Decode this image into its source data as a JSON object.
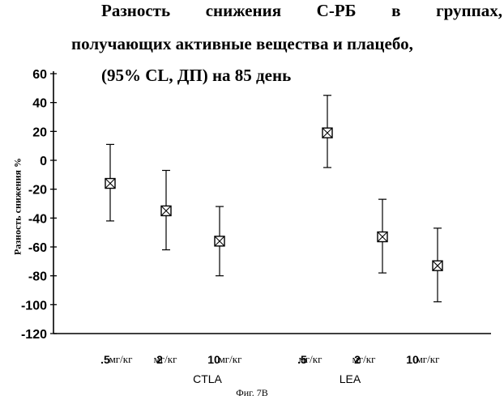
{
  "chart_data": {
    "type": "error-bar",
    "title_lines": [
      "Разность снижения С-РБ в группах,",
      "получающих активные вещества и плацебо,",
      "(95% CL, ДП) на 85 день"
    ],
    "ylabel": "Разность снижения %",
    "ylim": [
      -120,
      60
    ],
    "yticks": [
      "60",
      "40",
      "20",
      "0",
      "-20",
      "-40",
      "-60",
      "-80",
      "-100",
      "-120"
    ],
    "ytick_values": [
      60,
      40,
      20,
      0,
      -20,
      -40,
      -60,
      -80,
      -100,
      -120
    ],
    "groups": [
      {
        "name": "CTLA",
        "points": [
          {
            "dose": ".5",
            "unit": "мг/кг",
            "estimate": -16,
            "lower": -42,
            "upper": 11
          },
          {
            "dose": "2",
            "unit": "мг/кг",
            "estimate": -35,
            "lower": -62,
            "upper": -7
          },
          {
            "dose": "10",
            "unit": "мг/кг",
            "estimate": -56,
            "lower": -80,
            "upper": -32
          }
        ]
      },
      {
        "name": "LEA",
        "points": [
          {
            "dose": ".5",
            "unit": "мг/кг",
            "estimate": 19,
            "lower": -5,
            "upper": 45
          },
          {
            "dose": "2",
            "unit": "мг/кг",
            "estimate": -53,
            "lower": -78,
            "upper": -27
          },
          {
            "dose": "10",
            "unit": "мг/кг",
            "estimate": -73,
            "lower": -98,
            "upper": -47
          }
        ]
      }
    ],
    "grid": false,
    "legend": "none"
  },
  "caption": "Фиг. 7В"
}
